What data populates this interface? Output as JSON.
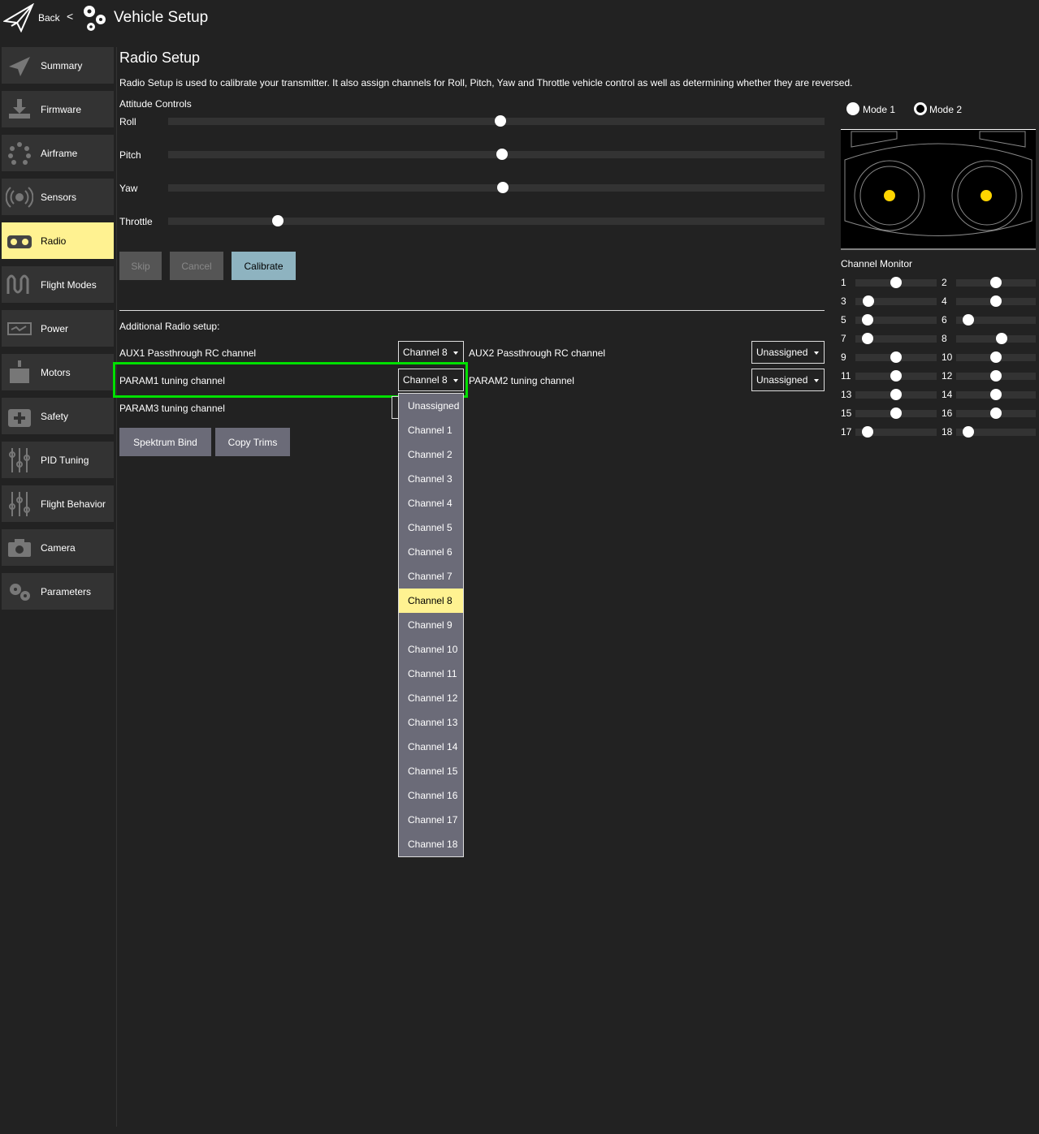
{
  "header": {
    "back_label": "Back",
    "separator": "<",
    "title": "Vehicle Setup"
  },
  "sidebar": {
    "items": [
      {
        "label": "Summary",
        "icon": "paper-plane-icon"
      },
      {
        "label": "Firmware",
        "icon": "download-icon"
      },
      {
        "label": "Airframe",
        "icon": "airframe-icon"
      },
      {
        "label": "Sensors",
        "icon": "sensors-icon"
      },
      {
        "label": "Radio",
        "icon": "radio-icon",
        "active": true
      },
      {
        "label": "Flight Modes",
        "icon": "flight-modes-icon"
      },
      {
        "label": "Power",
        "icon": "power-icon"
      },
      {
        "label": "Motors",
        "icon": "motors-icon"
      },
      {
        "label": "Safety",
        "icon": "safety-icon"
      },
      {
        "label": "PID Tuning",
        "icon": "pid-tuning-icon"
      },
      {
        "label": "Flight Behavior",
        "icon": "flight-behavior-icon"
      },
      {
        "label": "Camera",
        "icon": "camera-icon"
      },
      {
        "label": "Parameters",
        "icon": "parameters-icon"
      }
    ]
  },
  "main": {
    "title": "Radio Setup",
    "description": "Radio Setup is used to calibrate your transmitter. It also assign channels for Roll, Pitch, Yaw and Throttle vehicle control as well as determining whether they are reversed.",
    "attitude_label": "Attitude Controls",
    "attitude": [
      {
        "label": "Roll",
        "value": 0.506
      },
      {
        "label": "Pitch",
        "value": 0.509
      },
      {
        "label": "Yaw",
        "value": 0.51
      },
      {
        "label": "Throttle",
        "value": 0.167
      }
    ],
    "buttons": {
      "skip": "Skip",
      "cancel": "Cancel",
      "calibrate": "Calibrate"
    },
    "additional_label": "Additional Radio setup:",
    "aux1_label": "AUX1 Passthrough RC channel",
    "aux1_value": "Channel 8",
    "aux2_label": "AUX2 Passthrough RC channel",
    "aux2_value": "Unassigned",
    "param1_label": "PARAM1 tuning channel",
    "param1_value": "Channel 8",
    "param2_label": "PARAM2 tuning channel",
    "param2_value": "Unassigned",
    "param3_label": "PARAM3 tuning channel",
    "spektrum_bind": "Spektrum Bind",
    "copy_trims": "Copy Trims",
    "dropdown_options": [
      "Unassigned",
      "Channel 1",
      "Channel 2",
      "Channel 3",
      "Channel 4",
      "Channel 5",
      "Channel 6",
      "Channel 7",
      "Channel 8",
      "Channel 9",
      "Channel 10",
      "Channel 11",
      "Channel 12",
      "Channel 13",
      "Channel 14",
      "Channel 15",
      "Channel 16",
      "Channel 17",
      "Channel 18"
    ],
    "dropdown_selected": "Channel 8"
  },
  "right": {
    "mode1": "Mode 1",
    "mode2": "Mode 2",
    "mode_selected": "Mode 2",
    "stick_color": "#ffd500",
    "channel_monitor_label": "Channel Monitor",
    "channels": [
      0.5,
      0.5,
      0.16,
      0.5,
      0.15,
      0.15,
      0.15,
      0.57,
      0.5,
      0.5,
      0.5,
      0.5,
      0.5,
      0.5,
      0.5,
      0.5,
      0.15,
      0.15
    ]
  },
  "colors": {
    "highlight": "#00e000",
    "active": "#fff291",
    "calibrate": "#8eb3c0"
  }
}
